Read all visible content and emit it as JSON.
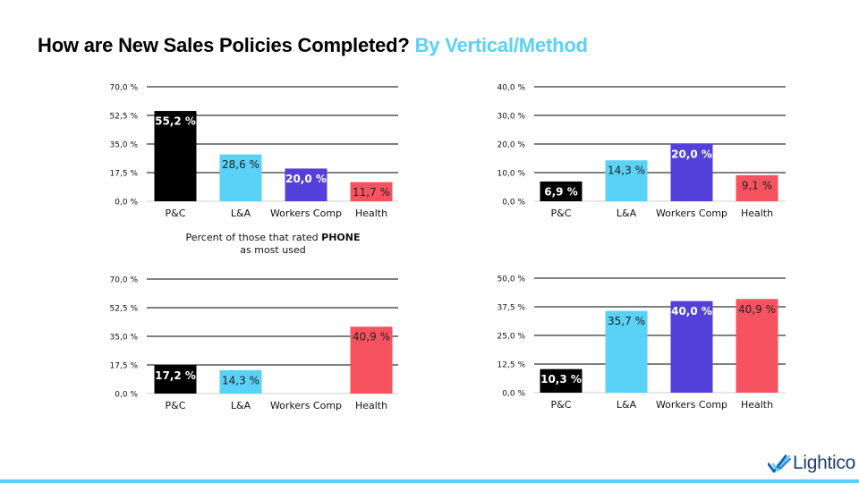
{
  "title": {
    "main": "How are New Sales Policies Completed?",
    "accent": "By Vertical/Method"
  },
  "caption": {
    "line1_prefix": "Percent of those that rated ",
    "line1_bold": "PHONE",
    "line2": "as most used"
  },
  "logo": {
    "text": "Lightico",
    "icon": "lightico-check-icon"
  },
  "colors": {
    "accent": "#5ad1f7",
    "pc": "#000000",
    "la": "#5ad1f7",
    "workers_comp": "#5340d8",
    "health": "#f7525f"
  },
  "chart_data": [
    {
      "type": "bar",
      "categories": [
        "P&C",
        "L&A",
        "Workers Comp",
        "Health"
      ],
      "values": [
        55.2,
        28.6,
        20.0,
        11.7
      ],
      "value_labels": [
        "55,2 %",
        "28,6 %",
        "20,0 %",
        "11,7 %"
      ],
      "yticks": [
        "0,0 %",
        "17,5 %",
        "35,0 %",
        "52,5 %",
        "70,0 %"
      ],
      "ylim": [
        0,
        70
      ],
      "grid": true
    },
    {
      "type": "bar",
      "categories": [
        "P&C",
        "L&A",
        "Workers Comp",
        "Health"
      ],
      "values": [
        6.9,
        14.3,
        20.0,
        9.1
      ],
      "value_labels": [
        "6,9 %",
        "14,3 %",
        "20,0 %",
        "9,1 %"
      ],
      "yticks": [
        "0,0 %",
        "10,0 %",
        "20,0 %",
        "30,0 %",
        "40,0 %"
      ],
      "ylim": [
        0,
        40
      ],
      "grid": true
    },
    {
      "type": "bar",
      "categories": [
        "P&C",
        "L&A",
        "Workers Comp",
        "Health"
      ],
      "values": [
        17.2,
        14.3,
        0,
        40.9
      ],
      "value_labels": [
        "17,2 %",
        "14,3 %",
        "",
        "40,9 %"
      ],
      "yticks": [
        "0,0 %",
        "17,5 %",
        "35,0 %",
        "52,5 %",
        "70,0 %"
      ],
      "ylim": [
        0,
        70
      ],
      "grid": true
    },
    {
      "type": "bar",
      "categories": [
        "P&C",
        "L&A",
        "Workers Comp",
        "Health"
      ],
      "values": [
        10.3,
        35.7,
        40.0,
        40.9
      ],
      "value_labels": [
        "10,3 %",
        "35,7 %",
        "40,0 %",
        "40,9 %"
      ],
      "yticks": [
        "0,0 %",
        "12,5 %",
        "25,0 %",
        "37,5 %",
        "50,0 %"
      ],
      "ylim": [
        0,
        50
      ],
      "grid": true
    }
  ]
}
